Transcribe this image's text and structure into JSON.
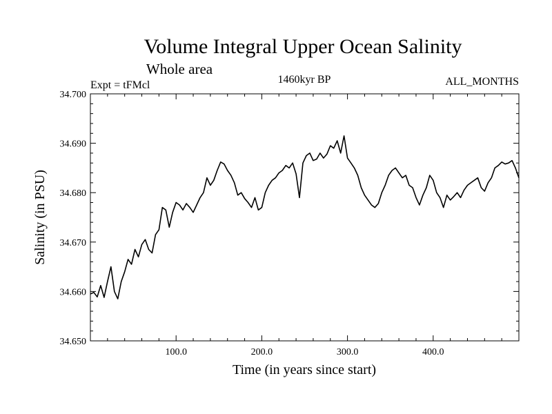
{
  "chart_data": {
    "type": "line",
    "title": "Volume Integral Upper Ocean Salinity",
    "subtitle": "Whole area",
    "annotations": {
      "experiment": "Expt = tFMcl",
      "period": "1460kyr BP",
      "months": "ALL_MONTHS"
    },
    "xlabel": "Time (in years since start)",
    "ylabel": "Salinity (in PSU)",
    "xlim": [
      0,
      500
    ],
    "ylim": [
      34.65,
      34.7
    ],
    "x_ticks": [
      100,
      200,
      300,
      400
    ],
    "x_tick_labels": [
      "100.0",
      "200.0",
      "300.0",
      "400.0"
    ],
    "y_ticks": [
      34.65,
      34.66,
      34.67,
      34.68,
      34.69,
      34.7
    ],
    "y_tick_labels": [
      "34.650",
      "34.660",
      "34.670",
      "34.680",
      "34.690",
      "34.700"
    ],
    "grid": false,
    "series": [
      {
        "name": "Salinity",
        "color": "#000000",
        "x": [
          0,
          4,
          8,
          12,
          16,
          20,
          24,
          28,
          32,
          36,
          40,
          44,
          48,
          52,
          56,
          60,
          64,
          68,
          72,
          76,
          80,
          84,
          88,
          92,
          96,
          100,
          104,
          108,
          112,
          116,
          120,
          124,
          128,
          132,
          136,
          140,
          144,
          148,
          152,
          156,
          160,
          164,
          168,
          172,
          176,
          180,
          184,
          188,
          192,
          196,
          200,
          204,
          208,
          212,
          216,
          220,
          224,
          228,
          232,
          236,
          240,
          244,
          248,
          252,
          256,
          260,
          264,
          268,
          272,
          276,
          280,
          284,
          288,
          292,
          296,
          300,
          304,
          308,
          312,
          316,
          320,
          324,
          328,
          332,
          336,
          340,
          344,
          348,
          352,
          356,
          360,
          364,
          368,
          372,
          376,
          380,
          384,
          388,
          392,
          396,
          400,
          404,
          408,
          412,
          416,
          420,
          424,
          428,
          432,
          436,
          440,
          444,
          448,
          452,
          456,
          460,
          464,
          468,
          472,
          476,
          480,
          484,
          488,
          492,
          496,
          500
        ],
        "values": [
          34.6595,
          34.6598,
          34.6589,
          34.6612,
          34.6588,
          34.662,
          34.665,
          34.66,
          34.6585,
          34.662,
          34.664,
          34.6665,
          34.6655,
          34.6685,
          34.667,
          34.6695,
          34.6705,
          34.6685,
          34.6678,
          34.6715,
          34.6725,
          34.677,
          34.6765,
          34.673,
          34.676,
          34.678,
          34.6775,
          34.6765,
          34.6778,
          34.677,
          34.676,
          34.6775,
          34.679,
          34.68,
          34.683,
          34.6815,
          34.6825,
          34.6845,
          34.6862,
          34.6858,
          34.6845,
          34.6835,
          34.682,
          34.6795,
          34.68,
          34.6788,
          34.678,
          34.677,
          34.679,
          34.6765,
          34.677,
          34.68,
          34.6815,
          34.6825,
          34.683,
          34.684,
          34.6845,
          34.6855,
          34.685,
          34.686,
          34.6838,
          34.679,
          34.686,
          34.6875,
          34.688,
          34.6865,
          34.6868,
          34.688,
          34.687,
          34.6878,
          34.6895,
          34.689,
          34.6905,
          34.688,
          34.6915,
          34.687,
          34.686,
          34.685,
          34.6835,
          34.681,
          34.6795,
          34.6785,
          34.6775,
          34.677,
          34.6778,
          34.68,
          34.6815,
          34.6835,
          34.6845,
          34.685,
          34.684,
          34.683,
          34.6835,
          34.6815,
          34.681,
          34.679,
          34.6775,
          34.6795,
          34.681,
          34.6835,
          34.6825,
          34.68,
          34.679,
          34.677,
          34.6795,
          34.6785,
          34.6792,
          34.68,
          34.679,
          34.6805,
          34.6815,
          34.682,
          34.6825,
          34.683,
          34.681,
          34.6803,
          34.682,
          34.683,
          34.685,
          34.6855,
          34.6862,
          34.6858,
          34.686,
          34.6865,
          34.685,
          34.683
        ]
      }
    ]
  }
}
